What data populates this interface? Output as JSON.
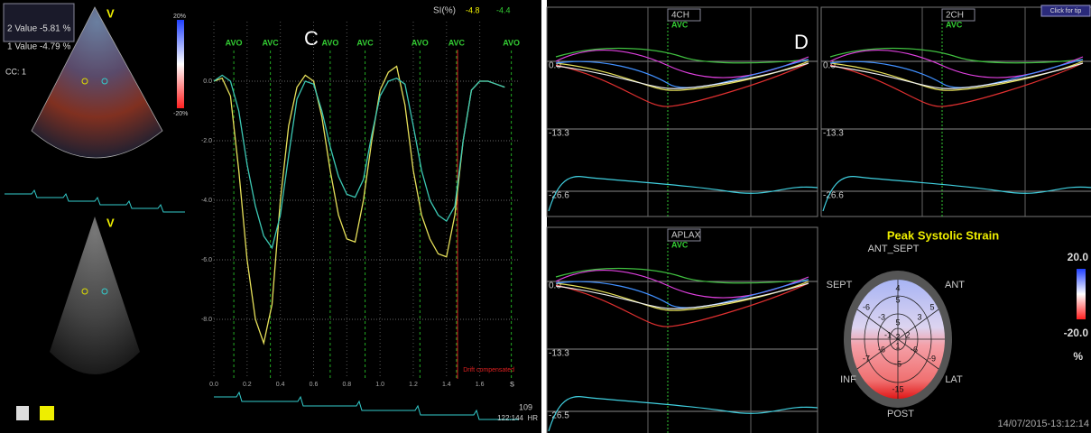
{
  "left_panel": {
    "label": "C",
    "readout_2": "2 Value -5.81 %",
    "readout_1": "1 Value -4.79 %",
    "scale_top": "20%",
    "scale_bottom": "-20%",
    "view_marker_top": "V",
    "view_marker_bottom": "V",
    "cc": "CC: 1",
    "hr_value": "109",
    "hr_label": "HR",
    "frame": "122:144"
  },
  "chart_data": {
    "type": "line",
    "y_label": "SI(%)",
    "readouts": [
      "-4.8",
      "-4.4"
    ],
    "x_unit": "s",
    "annotation": "Drift compensated",
    "events": [
      {
        "label": "AVO",
        "t": 0.12
      },
      {
        "label": "AVC",
        "t": 0.34
      },
      {
        "label": "AVO",
        "t": 0.7
      },
      {
        "label": "AVC",
        "t": 0.91
      },
      {
        "label": "AVO",
        "t": 1.24
      },
      {
        "label": "AVC",
        "t": 1.46
      },
      {
        "label": "AVO",
        "t": 1.79
      }
    ],
    "x": [
      0,
      0.05,
      0.1,
      0.15,
      0.2,
      0.25,
      0.3,
      0.35,
      0.4,
      0.45,
      0.5,
      0.55,
      0.6,
      0.65,
      0.7,
      0.75,
      0.8,
      0.85,
      0.9,
      0.95,
      1.0,
      1.05,
      1.1,
      1.15,
      1.2,
      1.25,
      1.3,
      1.35,
      1.4,
      1.45,
      1.5,
      1.55,
      1.6,
      1.65,
      1.7,
      1.75
    ],
    "series": [
      {
        "color": "#e6e05a",
        "values": [
          0,
          0.1,
          -0.5,
          -3,
          -6,
          -8,
          -8.8,
          -7.5,
          -4,
          -1.5,
          -0.2,
          0.2,
          0,
          -1.2,
          -3,
          -4.5,
          -5.3,
          -5.4,
          -4,
          -2,
          -0.3,
          0.3,
          0.5,
          -0.8,
          -3,
          -4.5,
          -5.3,
          -5.8,
          -5.9,
          -4.5,
          -2,
          -0.3,
          0,
          0,
          -0.1,
          -0.2
        ]
      },
      {
        "color": "#3cc8b4",
        "values": [
          0,
          0.2,
          0,
          -1,
          -2.8,
          -4.2,
          -5.2,
          -5.6,
          -4.5,
          -2.5,
          -0.6,
          0,
          -0.1,
          -1,
          -2.2,
          -3.2,
          -3.8,
          -3.9,
          -3.3,
          -1.8,
          -0.5,
          0,
          0.1,
          -0.1,
          -1.5,
          -3,
          -4,
          -4.5,
          -4.7,
          -4.2,
          -2,
          -0.3,
          0,
          0,
          -0.1,
          -0.2
        ]
      }
    ],
    "xlim": [
      0,
      1.83
    ],
    "ylim": [
      -10,
      2
    ],
    "xticks": [
      {
        "value": 0,
        "label": "0.0"
      },
      0.2,
      0.4,
      0.6,
      0.8,
      {
        "value": 1,
        "label": "1.0"
      },
      1.2,
      1.4,
      1.6
    ],
    "yticks": [
      {
        "value": 0,
        "label": "0.0"
      },
      {
        "value": -2,
        "label": "-2.0"
      },
      {
        "value": -4,
        "label": "-4.0"
      },
      {
        "value": -6,
        "label": "-6.0"
      },
      {
        "value": -8,
        "label": "-8.0"
      }
    ],
    "grid": true
  },
  "right_panel": {
    "label": "D",
    "tip": "Click for tip",
    "views": [
      {
        "name": "4CH",
        "event": "AVC",
        "ticks": [
          "0.0",
          "-13.3",
          "-26.6"
        ]
      },
      {
        "name": "2CH",
        "event": "AVC",
        "ticks": [
          "0.0",
          "-13.3",
          "-26.6"
        ]
      },
      {
        "name": "APLAX",
        "event": "AVC",
        "ticks": [
          "0.0",
          "-13.3",
          "-26.5"
        ]
      }
    ],
    "bullseye": {
      "title": "Peak Systolic Strain",
      "scale_max": "20.0",
      "scale_min": "-20.0",
      "unit": "%",
      "regions": [
        "ANT_SEPT",
        "SEPT",
        "ANT",
        "INF",
        "LAT",
        "POST"
      ],
      "segments": [
        "4",
        "5",
        "-6",
        "-7",
        "-9",
        "-15",
        "5",
        "3",
        "-3",
        "-6",
        "-5",
        "-6",
        "5",
        "2",
        "-1",
        "1",
        "2"
      ]
    },
    "date": "14/07/2015-13:12:14"
  }
}
